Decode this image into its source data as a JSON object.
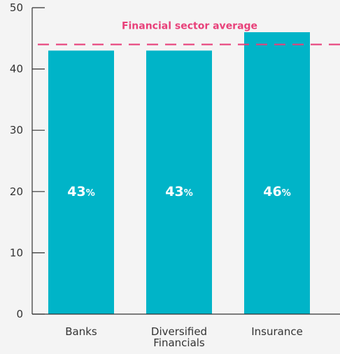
{
  "chart_data": {
    "type": "bar",
    "categories": [
      [
        "Banks"
      ],
      [
        "Diversified",
        "Financials"
      ],
      [
        "Insurance"
      ]
    ],
    "values": [
      43,
      43,
      46
    ],
    "value_labels": [
      {
        "number": "43",
        "unit": "%"
      },
      {
        "number": "43",
        "unit": "%"
      },
      {
        "number": "46",
        "unit": "%"
      }
    ],
    "ylim": [
      0,
      50
    ],
    "yticks": [
      0,
      10,
      20,
      30,
      40,
      50
    ],
    "reference_line": {
      "label": "Financial sector average",
      "value": 44,
      "style": "dashed"
    },
    "grid": false,
    "colors": {
      "bar": "#00b4c8",
      "reference": "#e8417a",
      "axis": "#333333",
      "text": "#333333"
    }
  }
}
